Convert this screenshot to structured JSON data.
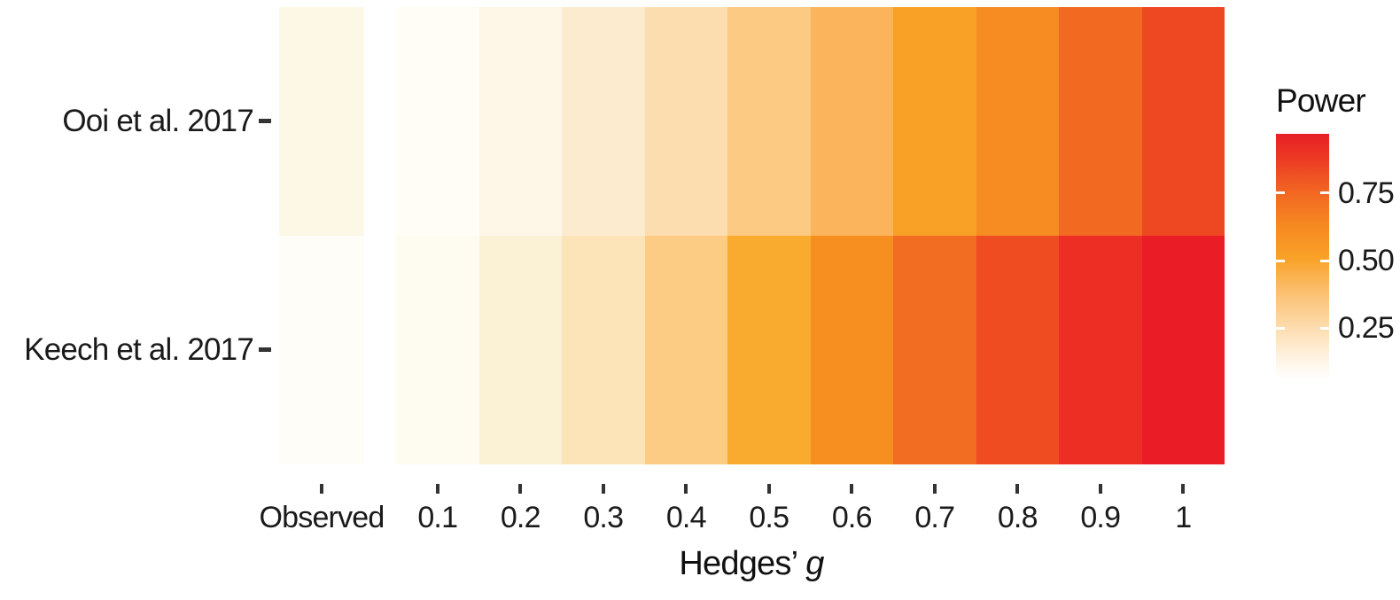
{
  "figure": {
    "background": "#FFFFFF"
  },
  "chart_data": {
    "type": "heatmap",
    "title": "",
    "xlabel_plain": "Hedges’",
    "xlabel_italic": "g",
    "ylabel": "",
    "x_categories": [
      "Observed",
      "0.1",
      "0.2",
      "0.3",
      "0.4",
      "0.5",
      "0.6",
      "0.7",
      "0.8",
      "0.9",
      "1"
    ],
    "y_categories": [
      "Ooi et al. 2017",
      "Keech et al. 2017"
    ],
    "series": [
      {
        "name": "Ooi et al. 2017",
        "power_estimated": [
          0.1,
          0.07,
          0.1,
          0.16,
          0.24,
          0.32,
          0.41,
          0.5,
          0.58,
          0.7,
          0.8
        ],
        "cell_colors": [
          "#FDF8E6",
          "#FFFDF5",
          "#FEF7E8",
          "#FDEBD0",
          "#FCDDB0",
          "#FCCA82",
          "#FBB45C",
          "#F9A127",
          "#F68C22",
          "#F26A21",
          "#EE4823"
        ]
      },
      {
        "name": "Keech et al. 2017",
        "power_estimated": [
          0.06,
          0.08,
          0.13,
          0.21,
          0.32,
          0.47,
          0.57,
          0.72,
          0.81,
          0.89,
          0.96
        ],
        "cell_colors": [
          "#FFFDF8",
          "#FEFBF0",
          "#FBF2D6",
          "#FDE4B8",
          "#FCCB84",
          "#F9AB30",
          "#F68F1F",
          "#F26C22",
          "#EF4C22",
          "#EC2E24",
          "#EA1C26"
        ]
      }
    ],
    "legend": {
      "title": "Power",
      "tick_labels": [
        "0.75",
        "0.50",
        "0.25"
      ],
      "tick_values": [
        0.75,
        0.5,
        0.25
      ],
      "scale_range": [
        0.06,
        0.97
      ],
      "gradient": [
        {
          "pos": 0,
          "color": "#E81F27"
        },
        {
          "pos": 10,
          "color": "#EC3A24"
        },
        {
          "pos": 24,
          "color": "#F26722"
        },
        {
          "pos": 38,
          "color": "#F68A21"
        },
        {
          "pos": 51,
          "color": "#F9A229"
        },
        {
          "pos": 65,
          "color": "#FBC172"
        },
        {
          "pos": 79,
          "color": "#FDDCAE"
        },
        {
          "pos": 90,
          "color": "#FEF1DE"
        },
        {
          "pos": 100,
          "color": "#FFFFFF"
        }
      ]
    },
    "layout": {
      "grid": "off",
      "legend_position": "right",
      "x_axis_ticks": "outside",
      "y_axis_ticks": "outside"
    }
  },
  "colors": {
    "axis_text": "#1A1A1A",
    "tick_mark": "#333333",
    "background": "#FFFFFF"
  }
}
